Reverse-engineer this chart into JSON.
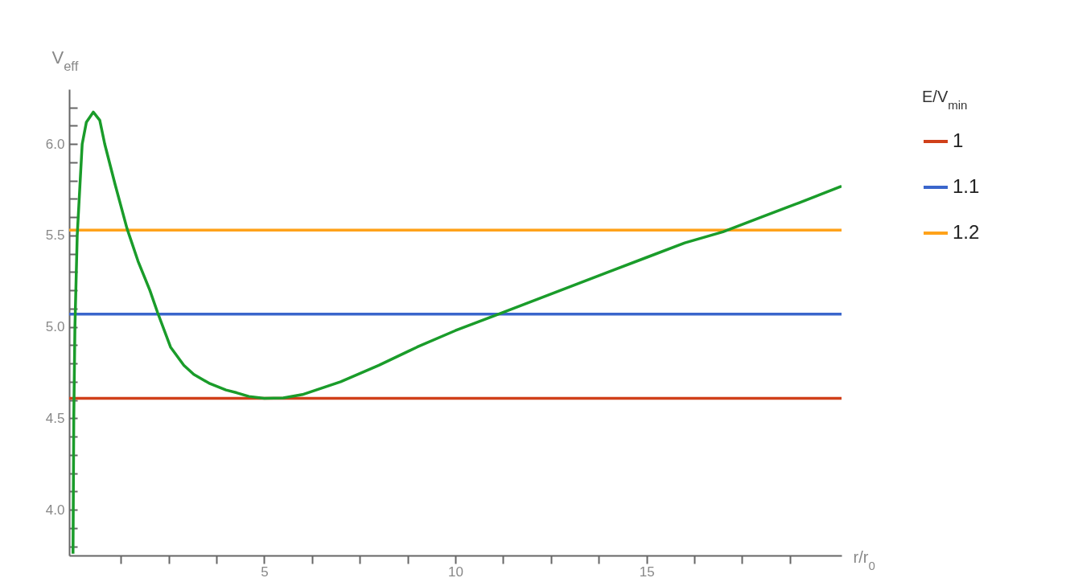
{
  "chart_data": {
    "type": "line",
    "xlabel": "r/r$_{0}$",
    "ylabel": "V$_{eff}$",
    "legend_title": "E/V$_{min}$",
    "legend": "right",
    "xlim": [
      -0.1,
      20.1
    ],
    "ylim": [
      3.75,
      6.3
    ],
    "xticks": [
      {
        "value": 1.25,
        "label": null
      },
      {
        "value": 2.5,
        "label": null
      },
      {
        "value": 3.75,
        "label": null
      },
      5,
      {
        "value": 6.25,
        "label": null
      },
      {
        "value": 7.5,
        "label": null
      },
      {
        "value": 8.75,
        "label": null
      },
      10,
      {
        "value": 11.25,
        "label": null
      },
      {
        "value": 12.5,
        "label": null
      },
      {
        "value": 13.75,
        "label": null
      },
      15,
      {
        "value": 16.25,
        "label": null
      },
      {
        "value": 17.5,
        "label": null
      },
      {
        "value": 18.75,
        "label": null
      }
    ],
    "yticks": [
      {
        "value": 3.8,
        "label": null
      },
      {
        "value": 3.9,
        "label": null
      },
      {
        "value": 4,
        "label": "4.0"
      },
      {
        "value": 4.1,
        "label": null
      },
      {
        "value": 4.2,
        "label": null
      },
      {
        "value": 4.3,
        "label": null
      },
      {
        "value": 4.4,
        "label": null
      },
      4.5,
      {
        "value": 4.6,
        "label": null
      },
      {
        "value": 4.7,
        "label": null
      },
      {
        "value": 4.8,
        "label": null
      },
      {
        "value": 4.9,
        "label": null
      },
      {
        "value": 5,
        "label": "5.0"
      },
      {
        "value": 5.1,
        "label": null
      },
      {
        "value": 5.2,
        "label": null
      },
      {
        "value": 5.3,
        "label": null
      },
      {
        "value": 5.4,
        "label": null
      },
      5.5,
      {
        "value": 5.6,
        "label": null
      },
      {
        "value": 5.7,
        "label": null
      },
      {
        "value": 5.8,
        "label": null
      },
      {
        "value": 5.9,
        "label": null
      },
      {
        "value": 6,
        "label": "6.0"
      },
      {
        "value": 6.1,
        "label": null
      },
      {
        "value": 6.2,
        "label": null
      }
    ],
    "series": [
      {
        "name": "1",
        "color": "#d0401a",
        "x": [
          -0.1,
          20.1
        ],
        "values": [
          4.61,
          4.61
        ]
      },
      {
        "name": "1.1",
        "color": "#3a66cc",
        "x": [
          -0.1,
          20.1
        ],
        "values": [
          5.07,
          5.07
        ]
      },
      {
        "name": "1.2",
        "color": "#ffa21a",
        "x": [
          -0.1,
          20.1
        ],
        "values": [
          5.53,
          5.53
        ]
      },
      {
        "color": "#1a9c2a",
        "x": [
          0,
          0.02,
          0.05,
          0.11,
          0.24,
          0.35,
          0.53,
          0.7,
          0.83,
          1.1,
          1.41,
          1.7,
          2.01,
          2.21,
          2.55,
          2.9,
          3.16,
          3.58,
          4.0,
          4.28,
          4.6,
          5.0,
          5.5,
          6.0,
          7.0,
          8.0,
          9.0,
          10.0,
          11.0,
          12.0,
          13.0,
          14.0,
          15.0,
          16.0,
          17.0,
          18.0,
          19.0,
          20.1
        ],
        "values": [
          3.76,
          4.5,
          5.0,
          5.5,
          6.0,
          6.12,
          6.175,
          6.13,
          6.0,
          5.78,
          5.54,
          5.36,
          5.2,
          5.08,
          4.89,
          4.79,
          4.74,
          4.69,
          4.655,
          4.64,
          4.62,
          4.61,
          4.612,
          4.63,
          4.7,
          4.79,
          4.89,
          4.98,
          5.06,
          5.14,
          5.22,
          5.3,
          5.38,
          5.46,
          5.52,
          5.6,
          5.68,
          5.77
        ]
      }
    ]
  }
}
